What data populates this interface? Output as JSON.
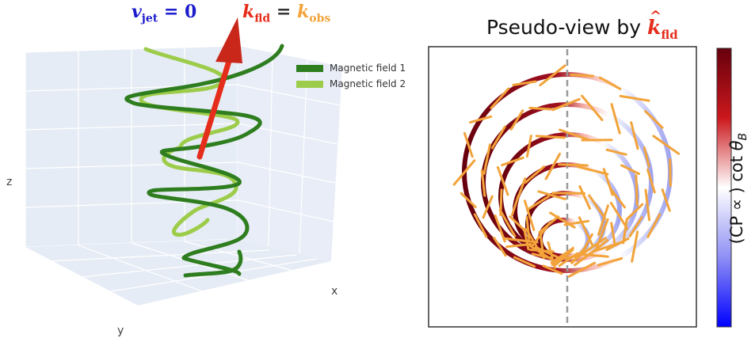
{
  "left_panel": {
    "header": {
      "v_symbol": "v",
      "v_sub": "jet",
      "v_eq": " = 0",
      "k_symbol": "k",
      "k_sub": "fld",
      "k_eq": " = ",
      "kobs_symbol": "k",
      "kobs_sub": "obs"
    },
    "axis_labels": {
      "x": "x",
      "y": "y",
      "z": "z"
    },
    "legend": [
      {
        "label": "Magnetic field 1",
        "color": "#2e7d1f"
      },
      {
        "label": "Magnetic field 2",
        "color": "#9ccc4a"
      }
    ],
    "arrow_color": "#e52d1c"
  },
  "right_panel": {
    "title_prefix": "Pseudo-view by ",
    "title_symbol": "k",
    "title_sub": "fld",
    "title_symbol_color": "#e52d1c",
    "colorbar_label_prefix": "(CP ∝ ) cot ",
    "colorbar_label_theta": "θ",
    "colorbar_label_sub": "B",
    "colorbar_colors": {
      "top": "#67000d",
      "mid": "#ffffff",
      "bottom": "#0000ff"
    },
    "tick_color": "#f2a33a",
    "center_line_color": "#999999"
  },
  "colors": {
    "header_blue": "#1c1ccc",
    "header_red": "#e52d1c",
    "header_orange": "#f2a33a"
  }
}
